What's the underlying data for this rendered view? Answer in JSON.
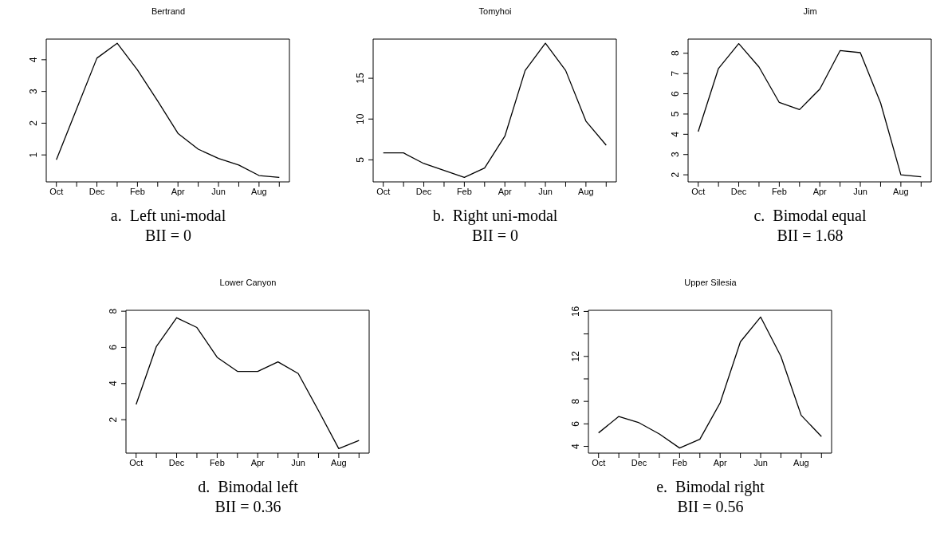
{
  "chart_data": [
    {
      "type": "line",
      "title": "Bertrand",
      "categories": [
        "Oct",
        null,
        "Dec",
        null,
        "Feb",
        null,
        "Apr",
        null,
        "Jun",
        null,
        "Aug",
        null
      ],
      "series": [
        {
          "color": "#000000",
          "values": [
            0.85,
            2.45,
            4.05,
            4.52,
            3.68,
            2.7,
            1.68,
            1.18,
            0.89,
            0.68,
            0.35,
            0.29
          ]
        }
      ],
      "ylim": [
        0.15,
        4.65
      ],
      "yticks": [
        1,
        2,
        3,
        4
      ],
      "annotations": [
        "a.  Left uni-modal",
        "BII = 0"
      ]
    },
    {
      "type": "line",
      "title": "Tomyhoi",
      "categories": [
        "Oct",
        null,
        "Dec",
        null,
        "Feb",
        null,
        "Apr",
        null,
        "Jun",
        null,
        "Aug",
        null
      ],
      "series": [
        {
          "color": "#000000",
          "values": [
            5.85,
            5.85,
            4.55,
            3.7,
            2.85,
            4.0,
            7.9,
            15.95,
            19.3,
            15.95,
            9.75,
            6.8
          ]
        }
      ],
      "ylim": [
        2.3,
        19.8
      ],
      "yticks": [
        5,
        10,
        15
      ],
      "annotations": [
        "b.  Right uni-modal",
        "BII = 0"
      ]
    },
    {
      "type": "line",
      "title": "Jim",
      "categories": [
        "Oct",
        null,
        "Dec",
        null,
        "Feb",
        null,
        "Apr",
        null,
        "Jun",
        null,
        "Aug",
        null
      ],
      "series": [
        {
          "color": "#000000",
          "values": [
            4.13,
            7.25,
            8.48,
            7.32,
            5.57,
            5.22,
            6.23,
            8.13,
            8.03,
            5.55,
            2.0,
            1.9
          ]
        }
      ],
      "ylim": [
        1.65,
        8.7
      ],
      "yticks": [
        2,
        3,
        4,
        5,
        6,
        7,
        8
      ],
      "annotations": [
        "c.  Bimodal equal",
        "BII = 1.68"
      ]
    },
    {
      "type": "line",
      "title": "Lower Canyon",
      "categories": [
        "Oct",
        null,
        "Dec",
        null,
        "Feb",
        null,
        "Apr",
        null,
        "Jun",
        null,
        "Aug",
        null
      ],
      "series": [
        {
          "color": "#000000",
          "values": [
            2.84,
            6.05,
            7.64,
            7.1,
            5.45,
            4.67,
            4.67,
            5.2,
            4.55,
            2.5,
            0.4,
            0.85
          ]
        }
      ],
      "ylim": [
        0.15,
        8.05
      ],
      "yticks": [
        2,
        4,
        6,
        8
      ],
      "annotations": [
        "d.  Bimodal left",
        "BII = 0.36"
      ]
    },
    {
      "type": "line",
      "title": "Upper Silesia",
      "categories": [
        "Oct",
        null,
        "Dec",
        null,
        "Feb",
        null,
        "Apr",
        null,
        "Jun",
        null,
        "Aug",
        null
      ],
      "series": [
        {
          "color": "#000000",
          "values": [
            5.2,
            6.66,
            6.1,
            5.1,
            3.85,
            4.63,
            7.87,
            13.3,
            15.5,
            12.0,
            6.76,
            4.87
          ]
        }
      ],
      "ylim": [
        3.4,
        16.1
      ],
      "yticks": [
        4,
        6,
        8,
        {
          "value": 10,
          "label": null
        },
        12,
        {
          "value": 14,
          "label": null
        },
        16
      ],
      "annotations": [
        "e.  Bimodal right",
        "BII = 0.56"
      ]
    }
  ]
}
